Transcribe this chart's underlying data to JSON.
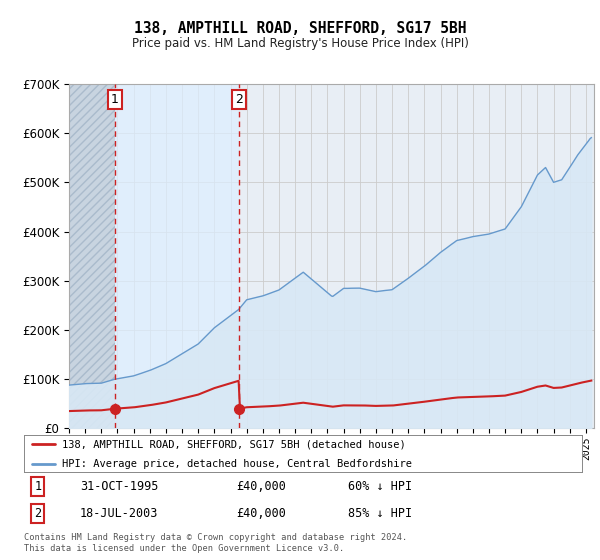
{
  "title": "138, AMPTHILL ROAD, SHEFFORD, SG17 5BH",
  "subtitle": "Price paid vs. HM Land Registry's House Price Index (HPI)",
  "legend_line1": "138, AMPTHILL ROAD, SHEFFORD, SG17 5BH (detached house)",
  "legend_line2": "HPI: Average price, detached house, Central Bedfordshire",
  "footer": "Contains HM Land Registry data © Crown copyright and database right 2024.\nThis data is licensed under the Open Government Licence v3.0.",
  "sale1_year": 1995.83,
  "sale1_price": 40000,
  "sale1_label": "1",
  "sale1_text": "31-OCT-1995",
  "sale1_pct": "60% ↓ HPI",
  "sale2_year": 2003.54,
  "sale2_price": 40000,
  "sale2_label": "2",
  "sale2_text": "18-JUL-2003",
  "sale2_pct": "85% ↓ HPI",
  "ylim": [
    0,
    700000
  ],
  "xmin": 1993.0,
  "xmax": 2025.5,
  "red_color": "#cc2222",
  "blue_color": "#6699cc",
  "blue_fill": "#d8e8f5",
  "hatch_color": "#d0d8e8",
  "grid_color": "#cccccc",
  "bg_color": "#ffffff",
  "plot_bg": "#e8eef5"
}
